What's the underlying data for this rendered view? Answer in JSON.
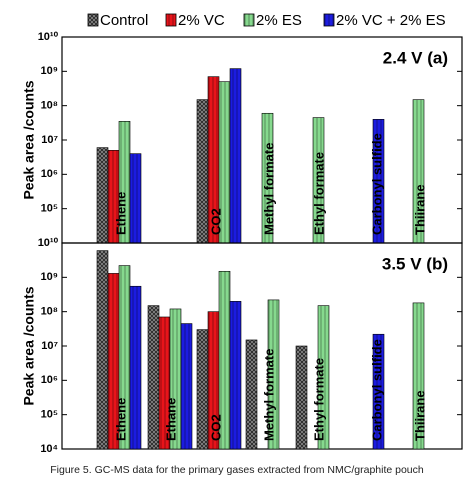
{
  "legend": [
    {
      "name": "Control",
      "color": "#8c8c8c"
    },
    {
      "name": "2% VC",
      "color": "#e8141a"
    },
    {
      "name": "2% ES",
      "color": "#86d98e"
    },
    {
      "name": "2% VC + 2% ES",
      "color": "#1c1ce0"
    }
  ],
  "caption": "Figure 5. GC-MS data for the primary gases extracted from NMC/graphite pouch",
  "chart_data": [
    {
      "type": "bar",
      "annotation": "2.4 V (a)",
      "ylabel": "Peak area /counts",
      "log_scale": true,
      "categories": [
        "Ethene",
        "CO2",
        "Methyl formate",
        "Ethyl formate",
        "Carbonyl sulfide",
        "Thiirane"
      ],
      "series": [
        {
          "values": [
            6000000,
            150000000,
            null,
            null,
            null,
            null
          ]
        },
        {
          "values": [
            5000000,
            700000000,
            null,
            null,
            null,
            null
          ]
        },
        {
          "values": [
            35000000,
            500000000,
            60000000,
            45000000,
            null,
            150000000
          ]
        },
        {
          "values": [
            4000000,
            1200000000,
            null,
            null,
            40000000,
            null
          ]
        }
      ],
      "ylim": [
        10000,
        10000000000
      ],
      "yticks": [
        {
          "value": 100000,
          "label": "10⁵"
        },
        {
          "value": 1000000,
          "label": "10⁶"
        },
        {
          "value": 10000000,
          "label": "10⁷"
        },
        {
          "value": 100000000,
          "label": "10⁸"
        },
        {
          "value": 1000000000,
          "label": "10⁹"
        },
        {
          "value": 10000000000,
          "label": "10¹⁰"
        }
      ]
    },
    {
      "type": "bar",
      "annotation": "3.5 V (b)",
      "ylabel": "Peak area /counts",
      "log_scale": true,
      "categories": [
        "Ethene",
        "Ethane",
        "CO2",
        "Methyl formate",
        "Ethyl formate",
        "Carbonyl sulfide",
        "Thiirane"
      ],
      "series": [
        {
          "values": [
            6000000000,
            150000000,
            30000000,
            15000000,
            10000000,
            null,
            null
          ]
        },
        {
          "values": [
            1300000000,
            70000000,
            100000000,
            null,
            null,
            null,
            null
          ]
        },
        {
          "values": [
            2200000000,
            120000000,
            1500000000,
            220000000,
            150000000,
            null,
            180000000
          ]
        },
        {
          "values": [
            550000000,
            45000000,
            200000000,
            null,
            null,
            22000000,
            null
          ]
        }
      ],
      "ylim": [
        10000,
        10000000000
      ],
      "yticks": [
        {
          "value": 10000,
          "label": "10⁴"
        },
        {
          "value": 100000,
          "label": "10⁵"
        },
        {
          "value": 1000000,
          "label": "10⁶"
        },
        {
          "value": 10000000,
          "label": "10⁷"
        },
        {
          "value": 100000000,
          "label": "10⁸"
        },
        {
          "value": 1000000000,
          "label": "10⁹"
        },
        {
          "value": 10000000000,
          "label": "10¹⁰"
        }
      ]
    }
  ]
}
